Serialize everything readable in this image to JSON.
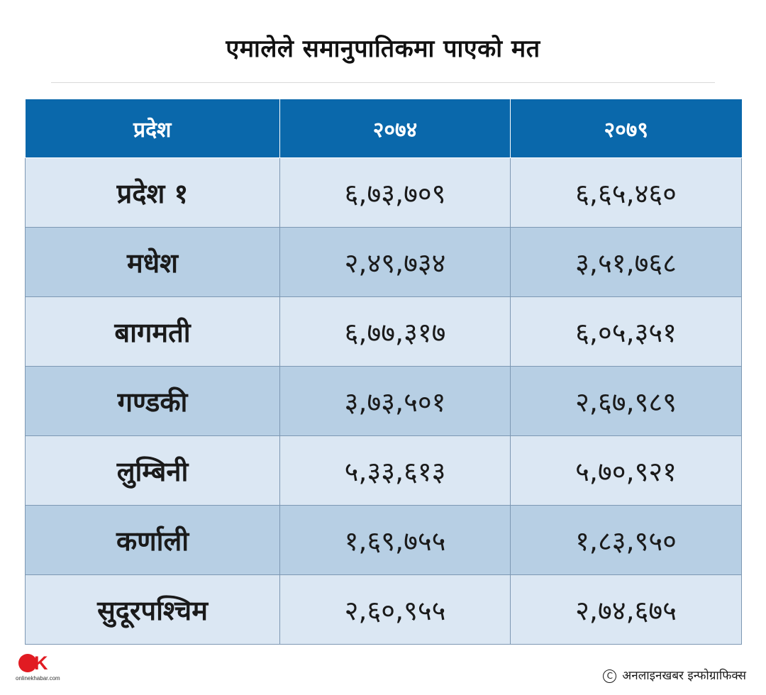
{
  "title": "एमालेले समानुपातिकमा पाएको मत",
  "table": {
    "headers": [
      "प्रदेश",
      "२०७४",
      "२०७९"
    ],
    "rows": [
      {
        "province": "प्रदेश  १",
        "y2074": "६,७३,७०९",
        "y2079": "६,६५,४६०"
      },
      {
        "province": "मधेश",
        "y2074": "२,४९,७३४",
        "y2079": "३,५१,७६८"
      },
      {
        "province": "बागमती",
        "y2074": "६,७७,३१७",
        "y2079": "६,०५,३५१"
      },
      {
        "province": "गण्डकी",
        "y2074": "३,७३,५०१",
        "y2079": "२,६७,९८९"
      },
      {
        "province": "लुम्बिनी",
        "y2074": "५,३३,६१३",
        "y2079": "५,७०,९२१"
      },
      {
        "province": "कर्णाली",
        "y2074": "१,६९,७५५",
        "y2079": "१,८३,९५०"
      },
      {
        "province": "सुदूरपश्चिम",
        "y2074": "२,६०,९५५",
        "y2079": "२,७४,६७५"
      }
    ]
  },
  "logo": {
    "mark_letter": "K",
    "wordmark": "onlinekhabar.com"
  },
  "credit": {
    "symbol": "C",
    "text": "अनलाइनखबर इन्फोग्राफिक्स"
  },
  "colors": {
    "header_bg": "#0a68ab",
    "row_light": "#dbe7f3",
    "row_dark": "#b7cfe4",
    "brand_red": "#e11b22"
  }
}
